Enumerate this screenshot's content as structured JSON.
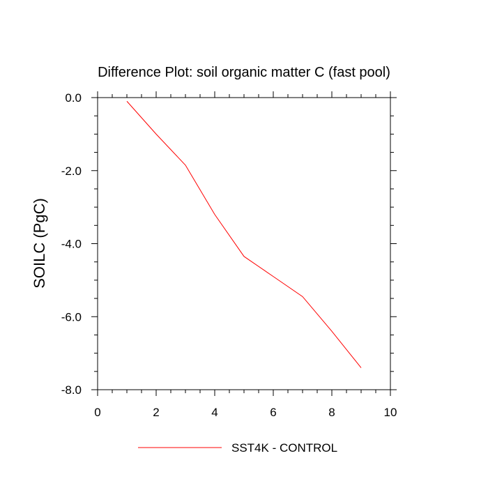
{
  "chart_data": {
    "type": "line",
    "title": "Difference Plot: soil organic matter C (fast pool)",
    "ylabel": "SOILC  (PgC)",
    "xlabel": "",
    "xlim": [
      0,
      10
    ],
    "ylim": [
      -8,
      0
    ],
    "xticks": [
      0,
      2,
      4,
      6,
      8,
      10
    ],
    "xtick_labels": [
      "0",
      "2",
      "4",
      "6",
      "8",
      "10"
    ],
    "yticks": [
      0,
      -2,
      -4,
      -6,
      -8
    ],
    "ytick_labels": [
      "0.0",
      "-2.0",
      "-4.0",
      "-6.0",
      "-8.0"
    ],
    "grid": false,
    "legend_position": "bottom-center",
    "series": [
      {
        "name": "SST4K - CONTROL",
        "color": "#ff0000",
        "x": [
          1,
          2,
          3,
          4,
          5,
          6,
          7,
          8,
          9
        ],
        "y": [
          -0.1,
          -1.0,
          -1.85,
          -3.2,
          -4.35,
          -4.9,
          -5.45,
          -6.4,
          -7.4
        ]
      }
    ]
  }
}
